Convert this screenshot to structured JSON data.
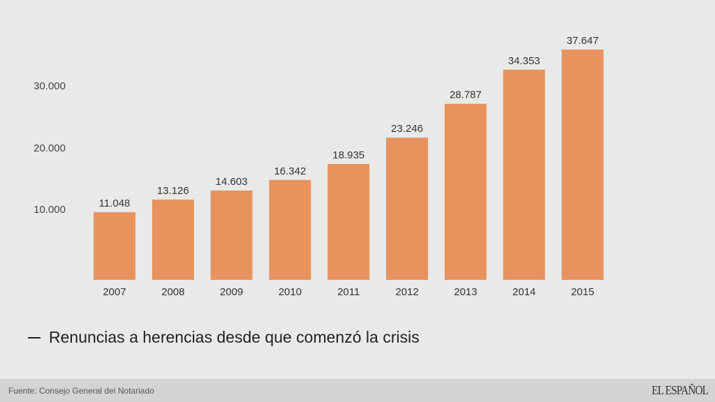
{
  "chart_data": {
    "type": "bar",
    "title": "Renuncias a herencias desde que comenzó la crisis",
    "categories": [
      "2007",
      "2008",
      "2009",
      "2010",
      "2011",
      "2012",
      "2013",
      "2014",
      "2015"
    ],
    "values": [
      11048,
      13126,
      14603,
      16342,
      18935,
      23246,
      28787,
      34353,
      37647
    ],
    "value_labels": [
      "11.048",
      "13.126",
      "14.603",
      "16.342",
      "18.935",
      "23.246",
      "28.787",
      "34.353",
      "37.647"
    ],
    "yticks": [
      10000,
      20000,
      30000
    ],
    "ytick_labels": [
      "10.000",
      "20.000",
      "30.000"
    ],
    "ylim": [
      0,
      37647
    ],
    "xlabel": "",
    "ylabel": "",
    "grid": false,
    "bar_color": "#e8935e"
  },
  "legend": {
    "label": "Renuncias a herencias desde que comenzó la crisis"
  },
  "footer": {
    "source": "Fuente: Consejo General del Notariado",
    "logo": "EL ESPAÑOL"
  }
}
